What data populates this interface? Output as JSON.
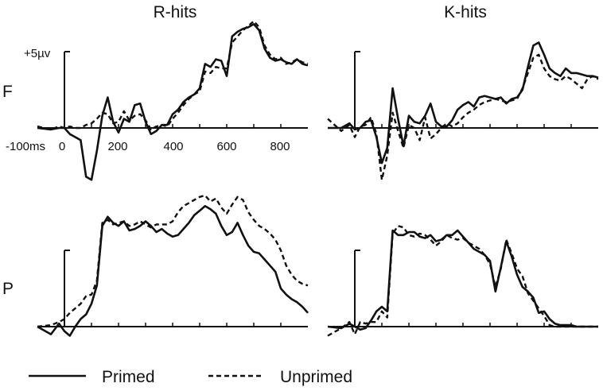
{
  "chart_data": {
    "type": "line",
    "columns": [
      "R-hits",
      "K-hits"
    ],
    "rows": [
      "F",
      "P"
    ],
    "scale_label": "+5µv",
    "baseline_label": "-100ms",
    "x_ticks": [
      "0",
      "200",
      "400",
      "600",
      "800"
    ],
    "legend": [
      "Primed",
      "Unprimed"
    ],
    "x_range_ms": [
      -100,
      900
    ],
    "panels": [
      {
        "column": "R-hits",
        "row": "F",
        "primed": {
          "x": [
            -100,
            -50,
            -20,
            0,
            20,
            40,
            60,
            80,
            100,
            120,
            140,
            160,
            180,
            200,
            220,
            240,
            260,
            280,
            300,
            320,
            340,
            360,
            380,
            400,
            420,
            440,
            460,
            480,
            500,
            520,
            540,
            560,
            580,
            600,
            620,
            640,
            660,
            680,
            700,
            720,
            740,
            760,
            780,
            800,
            820,
            840,
            860,
            880,
            900
          ],
          "y": [
            0.0,
            -0.1,
            0.0,
            0.0,
            -0.4,
            -0.6,
            -0.8,
            -3.2,
            -3.4,
            -1.5,
            0.8,
            2.0,
            0.4,
            -0.3,
            0.6,
            0.4,
            1.5,
            1.6,
            0.4,
            -0.4,
            -0.2,
            0.2,
            0.2,
            0.9,
            1.2,
            1.7,
            2.0,
            2.2,
            2.6,
            4.2,
            4.0,
            4.5,
            4.4,
            3.4,
            6.0,
            6.3,
            6.5,
            6.6,
            6.8,
            6.4,
            5.2,
            4.6,
            4.4,
            4.5,
            4.3,
            4.2,
            4.5,
            4.2,
            4.1
          ]
        },
        "unprimed": {
          "x": [
            -100,
            -50,
            -20,
            0,
            20,
            40,
            60,
            80,
            100,
            120,
            140,
            160,
            180,
            200,
            220,
            240,
            260,
            280,
            300,
            320,
            340,
            360,
            380,
            400,
            420,
            440,
            460,
            480,
            500,
            520,
            540,
            560,
            580,
            600,
            620,
            640,
            660,
            680,
            700,
            720,
            740,
            760,
            780,
            800,
            820,
            840,
            860,
            880,
            900
          ],
          "y": [
            0.1,
            -0.1,
            0.1,
            0.0,
            0.1,
            0.0,
            0.0,
            0.2,
            0.3,
            0.6,
            1.0,
            0.9,
            0.3,
            0.4,
            1.1,
            0.5,
            0.8,
            0.9,
            0.5,
            -0.1,
            0.1,
            0.2,
            0.1,
            0.6,
            1.0,
            1.5,
            1.9,
            2.2,
            2.4,
            3.7,
            3.6,
            4.0,
            3.9,
            3.9,
            5.6,
            6.0,
            6.4,
            6.7,
            7.0,
            6.6,
            5.4,
            4.8,
            4.5,
            4.6,
            4.2,
            4.3,
            4.5,
            4.3,
            4.2
          ]
        }
      },
      {
        "column": "K-hits",
        "row": "F",
        "primed": {
          "x": [
            -100,
            -50,
            -20,
            0,
            20,
            40,
            60,
            80,
            100,
            120,
            140,
            160,
            180,
            200,
            220,
            240,
            260,
            280,
            300,
            320,
            340,
            360,
            380,
            400,
            420,
            440,
            460,
            480,
            500,
            520,
            540,
            560,
            580,
            600,
            620,
            640,
            660,
            680,
            700,
            720,
            740,
            760,
            780,
            800,
            820,
            840,
            860,
            880,
            900
          ],
          "y": [
            0.0,
            0.0,
            0.3,
            -0.1,
            0.0,
            0.4,
            0.5,
            -0.6,
            -2.3,
            -1.3,
            2.6,
            0.6,
            -1.2,
            0.8,
            0.4,
            0.3,
            0.8,
            1.6,
            0.4,
            0.1,
            0.1,
            0.5,
            1.2,
            1.5,
            1.7,
            1.4,
            2.0,
            2.1,
            2.0,
            1.9,
            2.0,
            1.6,
            1.9,
            2.0,
            2.5,
            4.0,
            5.4,
            5.6,
            4.8,
            3.9,
            3.6,
            3.4,
            3.9,
            3.6,
            3.6,
            3.5,
            3.4,
            3.4,
            3.3
          ]
        },
        "unprimed": {
          "x": [
            -100,
            -50,
            -20,
            0,
            20,
            40,
            60,
            80,
            100,
            120,
            140,
            160,
            180,
            200,
            220,
            240,
            260,
            280,
            300,
            320,
            340,
            360,
            380,
            400,
            420,
            440,
            460,
            480,
            500,
            520,
            540,
            560,
            580,
            600,
            620,
            640,
            660,
            680,
            700,
            720,
            740,
            760,
            780,
            800,
            820,
            840,
            860,
            880,
            900
          ],
          "y": [
            0.6,
            -0.2,
            0.2,
            -0.6,
            0.1,
            0.2,
            0.7,
            -0.4,
            -3.4,
            -1.8,
            1.0,
            -0.2,
            -1.3,
            0.2,
            0.0,
            -0.8,
            0.7,
            -0.7,
            -0.4,
            0.0,
            0.3,
            0.1,
            0.3,
            0.7,
            1.0,
            1.2,
            1.5,
            1.7,
            1.8,
            1.9,
            1.8,
            1.7,
            1.8,
            1.9,
            2.6,
            3.6,
            4.6,
            4.8,
            3.9,
            3.4,
            3.2,
            3.1,
            3.4,
            3.2,
            2.9,
            2.6,
            3.2,
            3.4,
            3.2
          ]
        }
      },
      {
        "column": "R-hits",
        "row": "P",
        "primed": {
          "x": [
            -100,
            -50,
            -20,
            0,
            20,
            40,
            60,
            80,
            100,
            120,
            140,
            160,
            180,
            200,
            220,
            240,
            260,
            280,
            300,
            320,
            340,
            360,
            380,
            400,
            420,
            440,
            460,
            480,
            500,
            520,
            540,
            560,
            580,
            600,
            620,
            640,
            660,
            680,
            700,
            720,
            740,
            760,
            780,
            800,
            820,
            840,
            860,
            880,
            900
          ],
          "y": [
            0.0,
            -0.5,
            0.2,
            -0.3,
            -0.6,
            0.0,
            0.5,
            0.8,
            1.5,
            2.7,
            6.6,
            7.2,
            6.8,
            6.6,
            6.9,
            6.3,
            6.4,
            6.6,
            6.9,
            6.6,
            6.2,
            6.4,
            6.1,
            5.9,
            6.0,
            6.4,
            6.8,
            7.3,
            7.6,
            7.9,
            7.7,
            7.4,
            6.6,
            6.0,
            6.2,
            6.8,
            6.0,
            5.3,
            4.9,
            4.8,
            4.4,
            4.0,
            3.6,
            2.5,
            2.1,
            1.8,
            1.6,
            1.3,
            0.9
          ]
        },
        "unprimed": {
          "x": [
            -100,
            -50,
            -20,
            0,
            20,
            40,
            60,
            80,
            100,
            120,
            140,
            160,
            180,
            200,
            220,
            240,
            260,
            280,
            300,
            320,
            340,
            360,
            380,
            400,
            420,
            440,
            460,
            480,
            500,
            520,
            540,
            560,
            580,
            600,
            620,
            640,
            660,
            680,
            700,
            720,
            740,
            760,
            780,
            800,
            820,
            840,
            860,
            880,
            900
          ],
          "y": [
            0.0,
            0.1,
            0.3,
            0.5,
            0.9,
            1.2,
            1.5,
            2.0,
            2.1,
            3.0,
            6.8,
            7.0,
            6.7,
            6.8,
            6.9,
            6.6,
            6.7,
            6.9,
            6.7,
            6.5,
            6.7,
            6.7,
            6.7,
            6.9,
            7.5,
            7.9,
            8.1,
            8.3,
            8.5,
            8.6,
            8.2,
            8.4,
            7.8,
            7.4,
            8.0,
            8.5,
            8.3,
            7.5,
            7.0,
            6.6,
            6.4,
            6.1,
            5.7,
            5.0,
            4.0,
            3.4,
            3.0,
            2.8,
            2.7
          ]
        }
      },
      {
        "column": "K-hits",
        "row": "P",
        "primed": {
          "x": [
            -100,
            -50,
            -20,
            0,
            20,
            40,
            60,
            80,
            100,
            120,
            140,
            160,
            180,
            200,
            220,
            240,
            260,
            280,
            300,
            320,
            340,
            360,
            380,
            400,
            420,
            440,
            460,
            480,
            500,
            520,
            540,
            560,
            580,
            600,
            620,
            640,
            660,
            680,
            700,
            720,
            740,
            760,
            780,
            800,
            820,
            840,
            860,
            880,
            900
          ],
          "y": [
            0.0,
            -0.1,
            0.2,
            0.0,
            -0.2,
            -0.1,
            0.4,
            1.0,
            1.3,
            1.0,
            6.3,
            6.0,
            6.0,
            6.2,
            6.2,
            5.9,
            5.8,
            6.0,
            5.6,
            5.7,
            6.0,
            6.0,
            6.3,
            5.9,
            5.5,
            5.1,
            4.9,
            4.7,
            4.3,
            2.3,
            3.9,
            5.6,
            4.6,
            3.4,
            2.6,
            2.3,
            1.9,
            0.9,
            1.0,
            0.5,
            0.2,
            0.1,
            0.1,
            0.1,
            0.0,
            0.0,
            0.0,
            0.0,
            0.0
          ]
        },
        "unprimed": {
          "x": [
            -100,
            -50,
            -20,
            0,
            20,
            40,
            60,
            80,
            100,
            120,
            140,
            160,
            180,
            200,
            220,
            240,
            260,
            280,
            300,
            320,
            340,
            360,
            380,
            400,
            420,
            440,
            460,
            480,
            500,
            520,
            540,
            560,
            580,
            600,
            620,
            640,
            660,
            680,
            700,
            720,
            740,
            760,
            780,
            800,
            820,
            840,
            860,
            880,
            900
          ],
          "y": [
            -0.6,
            -0.1,
            0.3,
            -0.5,
            0.3,
            0.2,
            0.3,
            0.3,
            1.0,
            0.6,
            6.1,
            6.6,
            6.5,
            6.0,
            5.9,
            6.1,
            6.0,
            5.7,
            5.3,
            5.6,
            6.0,
            5.8,
            5.7,
            5.8,
            5.5,
            5.3,
            5.1,
            4.7,
            4.1,
            2.6,
            3.8,
            5.7,
            4.8,
            3.8,
            3.3,
            2.2,
            1.7,
            1.2,
            0.7,
            0.1,
            0.0,
            0.0,
            0.0,
            0.0,
            0.0,
            0.0,
            0.0,
            0.0,
            0.0
          ]
        }
      }
    ]
  }
}
